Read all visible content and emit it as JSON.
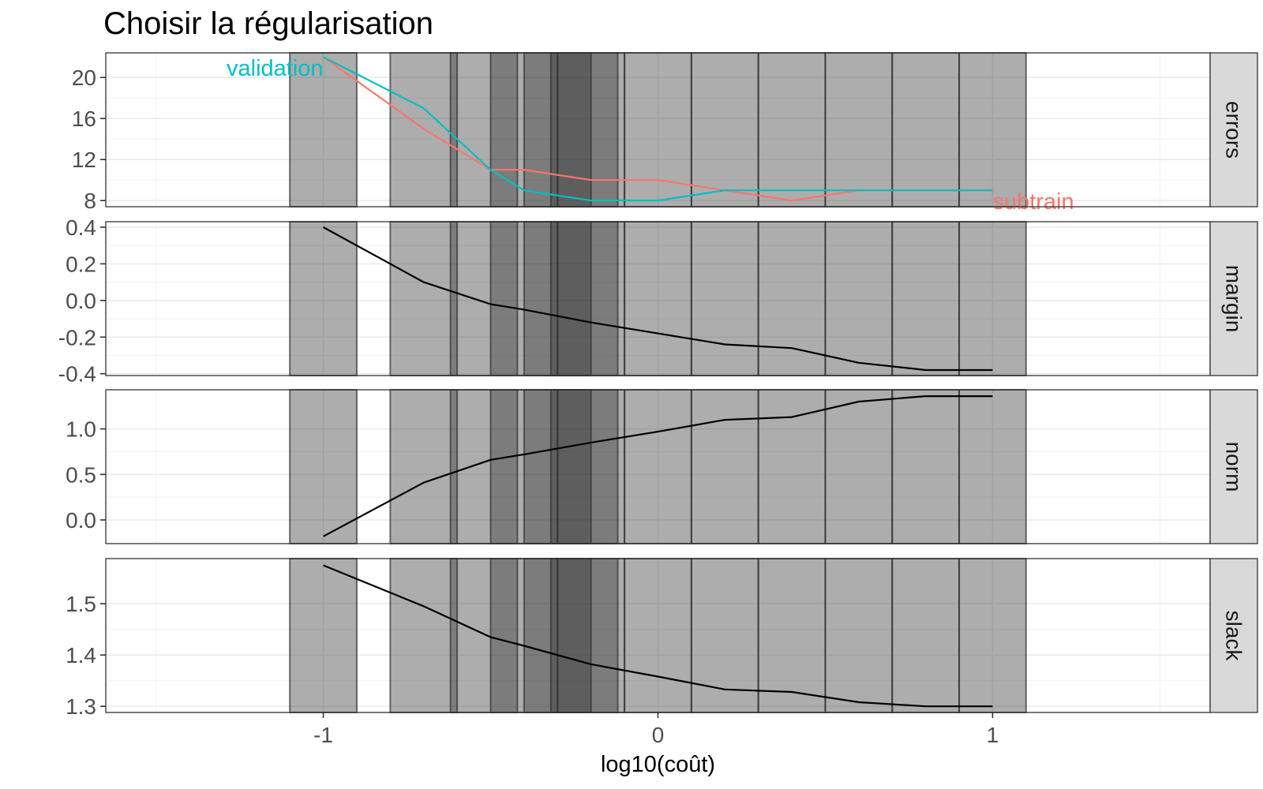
{
  "chart_data": {
    "type": "line",
    "title": "Choisir la régularisation",
    "xlabel": "log10(coût)",
    "xlim": [
      -1.65,
      1.65
    ],
    "x_ticks": [
      -1,
      0,
      1
    ],
    "x_tick_labels": [
      "-1",
      "0",
      "1"
    ],
    "grid": true,
    "theme": "bw, faceted vertically with strip labels on the right",
    "shaded_bands": [
      [
        -1.1,
        -0.9
      ],
      [
        -0.8,
        -0.6
      ],
      [
        -0.62,
        -0.42
      ],
      [
        -0.5,
        -0.3
      ],
      [
        -0.4,
        -0.2
      ],
      [
        -0.32,
        -0.12
      ],
      [
        -0.3,
        -0.1
      ],
      [
        -0.1,
        0.1
      ],
      [
        0.1,
        0.3
      ],
      [
        0.3,
        0.5
      ],
      [
        0.5,
        0.7
      ],
      [
        0.7,
        0.9
      ],
      [
        0.9,
        1.1
      ]
    ],
    "band_color": "#333333",
    "panels": [
      {
        "strip_label": "errors",
        "ylim": [
          7.4,
          22.4
        ],
        "y_ticks": [
          8,
          12,
          16,
          20
        ],
        "y_tick_labels": [
          "8",
          "12",
          "16",
          "20"
        ],
        "series": [
          {
            "name": "subtrain",
            "color": "#F8766D",
            "x": [
              -1.0,
              -0.7,
              -0.5,
              -0.4,
              -0.2,
              0.0,
              0.2,
              0.4,
              0.6,
              0.8,
              1.0
            ],
            "y": [
              22,
              15,
              11,
              11,
              10,
              10,
              9,
              8,
              9,
              9,
              9
            ]
          },
          {
            "name": "validation",
            "color": "#00BFC4",
            "x": [
              -1.0,
              -0.7,
              -0.5,
              -0.4,
              -0.2,
              0.0,
              0.2,
              0.4,
              0.6,
              0.8,
              1.0
            ],
            "y": [
              22,
              17,
              11,
              9,
              8,
              8,
              9,
              9,
              9,
              9,
              9
            ]
          }
        ]
      },
      {
        "strip_label": "margin",
        "ylim": [
          -0.41,
          0.43
        ],
        "y_ticks": [
          -0.4,
          -0.2,
          0.0,
          0.2,
          0.4
        ],
        "y_tick_labels": [
          "-0.4",
          "-0.2",
          "0.0",
          "0.2",
          "0.4"
        ],
        "series": [
          {
            "color": "#000000",
            "x": [
              -1.0,
              -0.7,
              -0.5,
              -0.4,
              -0.2,
              0.0,
              0.2,
              0.4,
              0.6,
              0.8,
              1.0
            ],
            "y": [
              0.4,
              0.1,
              -0.02,
              -0.05,
              -0.12,
              -0.18,
              -0.24,
              -0.26,
              -0.34,
              -0.38,
              -0.38
            ]
          }
        ]
      },
      {
        "strip_label": "norm",
        "ylim": [
          -0.26,
          1.43
        ],
        "y_ticks": [
          0.0,
          0.5,
          1.0
        ],
        "y_tick_labels": [
          "0.0",
          "0.5",
          "1.0"
        ],
        "series": [
          {
            "color": "#000000",
            "x": [
              -1.0,
              -0.7,
              -0.5,
              -0.4,
              -0.2,
              0.0,
              0.2,
              0.4,
              0.6,
              0.8,
              1.0
            ],
            "y": [
              -0.18,
              0.41,
              0.66,
              0.72,
              0.85,
              0.97,
              1.1,
              1.13,
              1.3,
              1.36,
              1.36
            ]
          }
        ]
      },
      {
        "strip_label": "slack",
        "ylim": [
          1.288,
          1.588
        ],
        "y_ticks": [
          1.3,
          1.4,
          1.5
        ],
        "y_tick_labels": [
          "1.3",
          "1.4",
          "1.5"
        ],
        "series": [
          {
            "color": "#000000",
            "x": [
              -1.0,
              -0.7,
              -0.5,
              -0.4,
              -0.2,
              0.0,
              0.2,
              0.4,
              0.6,
              0.8,
              1.0
            ],
            "y": [
              1.575,
              1.495,
              1.435,
              1.418,
              1.382,
              1.358,
              1.333,
              1.328,
              1.308,
              1.3,
              1.3
            ]
          }
        ]
      }
    ]
  }
}
